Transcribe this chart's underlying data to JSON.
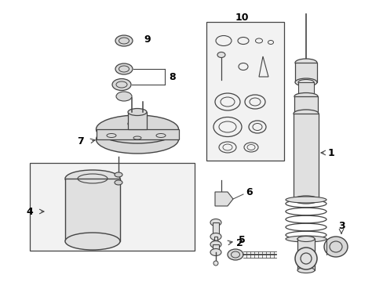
{
  "bg_color": "#ffffff",
  "line_color": "#444444",
  "label_color": "#000000",
  "fig_w": 4.89,
  "fig_h": 3.6,
  "dpi": 100
}
